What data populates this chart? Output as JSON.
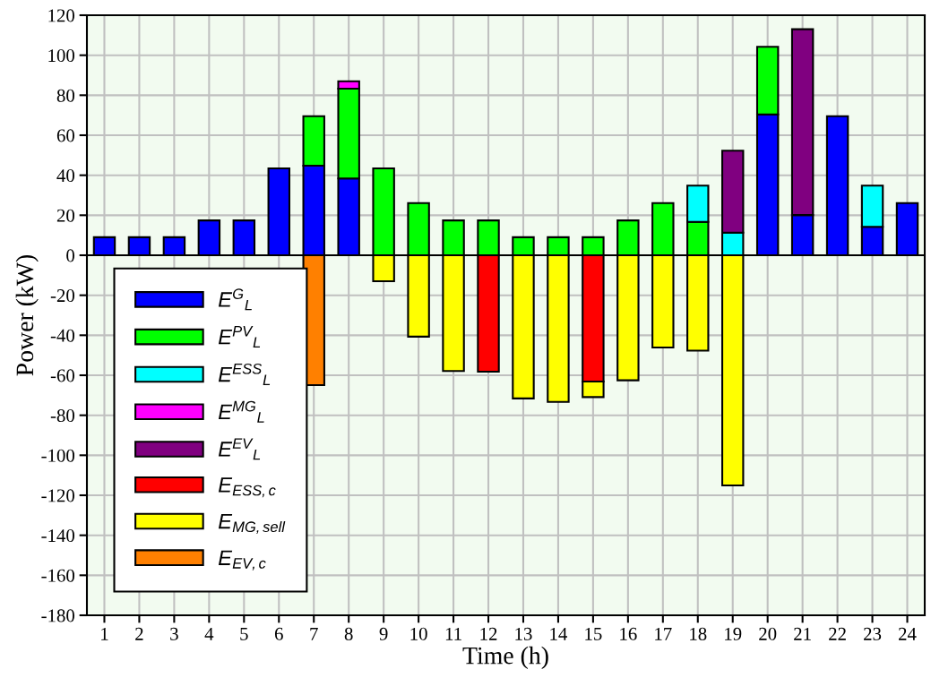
{
  "chart_data": {
    "type": "bar",
    "stacked": true,
    "xlabel": "Time (h)",
    "ylabel": "Power (kW)",
    "categories": [
      "1",
      "2",
      "3",
      "4",
      "5",
      "6",
      "7",
      "8",
      "9",
      "10",
      "11",
      "12",
      "13",
      "14",
      "15",
      "16",
      "17",
      "18",
      "19",
      "20",
      "21",
      "22",
      "23",
      "24"
    ],
    "series": [
      {
        "name": "E$^{G}$$_{L}$",
        "color": "#0000ff",
        "values": [
          9.0,
          9.0,
          9.0,
          17.4,
          17.4,
          43.4,
          44.8,
          38.4,
          0,
          0,
          0,
          0,
          0,
          0,
          0,
          0,
          0,
          0,
          0,
          70.4,
          20.1,
          69.5,
          14.2,
          26.1
        ]
      },
      {
        "name": "E$^{PV}$$_{L}$",
        "color": "#00ff00",
        "values": [
          0,
          0,
          0,
          0,
          0,
          0,
          24.7,
          44.9,
          43.4,
          26.1,
          17.4,
          17.4,
          9.0,
          9.0,
          9.0,
          17.4,
          26.1,
          16.7,
          0,
          33.8,
          0,
          0,
          0,
          0
        ]
      },
      {
        "name": "E$^{ESS}$$_{L}$",
        "color": "#00ffff",
        "values": [
          0,
          0,
          0,
          0,
          0,
          0,
          0,
          0,
          0,
          0,
          0,
          0,
          0,
          0,
          0,
          0,
          0,
          18.1,
          11.3,
          0,
          0,
          0,
          20.6,
          0
        ]
      },
      {
        "name": "E$^{MG}$$_{L}$",
        "color": "#ff00ff",
        "values": [
          0,
          0,
          0,
          0,
          0,
          0,
          0,
          3.7,
          0,
          0,
          0,
          0,
          0,
          0,
          0,
          0,
          0,
          0,
          0,
          0,
          0,
          0,
          0,
          0
        ]
      },
      {
        "name": "E$^{EV}$$_{L}$",
        "color": "#800080",
        "values": [
          0,
          0,
          0,
          0,
          0,
          0,
          0,
          0,
          0,
          0,
          0,
          0,
          0,
          0,
          0,
          0,
          0,
          0,
          41.0,
          0,
          92.9,
          0,
          0,
          0
        ]
      },
      {
        "name": "E$_{ESS,c}$",
        "color": "#ff0000",
        "values": [
          0,
          0,
          0,
          0,
          0,
          0,
          0,
          0,
          0,
          0,
          0,
          -58.2,
          0,
          0,
          -63.1,
          0,
          0,
          0,
          0,
          0,
          0,
          0,
          0,
          0
        ]
      },
      {
        "name": "E$_{MG,sell}$",
        "color": "#ffff00",
        "values": [
          0,
          0,
          0,
          0,
          0,
          0,
          0,
          0,
          -13.0,
          -40.7,
          -57.9,
          0,
          -71.6,
          -73.3,
          -7.8,
          -62.5,
          -46.1,
          -47.7,
          -115.1,
          0,
          0,
          0,
          0,
          0
        ]
      },
      {
        "name": "E$_{EV,c}$",
        "color": "#ff8000",
        "values": [
          0,
          0,
          0,
          0,
          0,
          0,
          -64.9,
          0,
          0,
          0,
          0,
          0,
          0,
          0,
          0,
          0,
          0,
          0,
          0,
          0,
          0,
          0,
          0,
          0
        ]
      }
    ],
    "ylim": [
      -180,
      120
    ],
    "yticks": [
      -180,
      -160,
      -140,
      -120,
      -100,
      -80,
      -60,
      -40,
      -20,
      0,
      20,
      40,
      60,
      80,
      100,
      120
    ],
    "grid": true,
    "legend": "bottom left"
  }
}
